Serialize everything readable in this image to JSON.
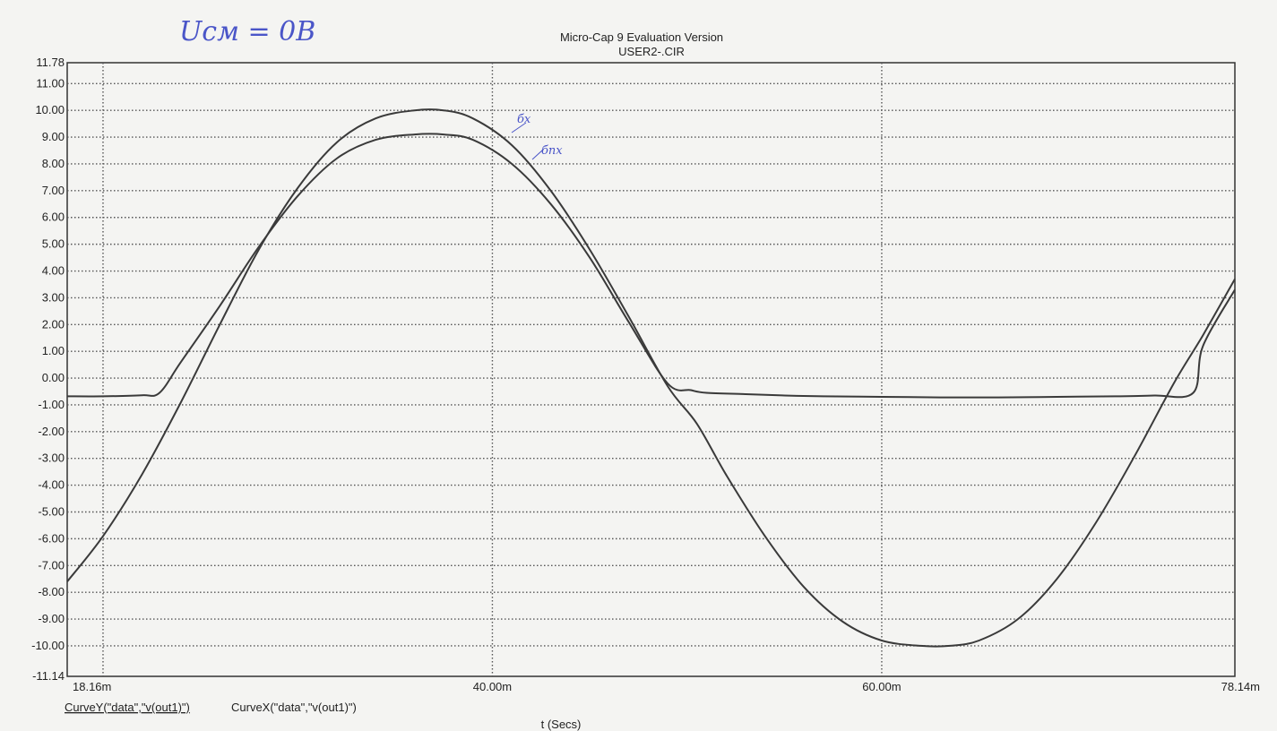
{
  "header": {
    "handwritten_note": "Uсм = 0В",
    "title": "Micro-Cap 9 Evaluation Version",
    "subtitle": "USER2-.CIR"
  },
  "footer": {
    "curve_y": "CurveY(\"data\",\"v(out1)\")",
    "curve_x": "CurveX(\"data\",\"v(out1)\")",
    "xlabel_handwritten": "t (Secs)"
  },
  "annotations": {
    "curve1": "бx",
    "curve2": "бпx"
  },
  "colors": {
    "curve": "#3a3a3a",
    "grid": "#555555",
    "ink": "#4a55c8",
    "background": "#f4f4f2"
  },
  "chart_data": {
    "type": "line",
    "title": "Micro-Cap 9 Evaluation Version",
    "subtitle": "USER2-.CIR",
    "xlabel": "t (Secs)",
    "ylabel": "",
    "xlim": [
      18.16,
      78.14
    ],
    "ylim": [
      -11.14,
      11.78
    ],
    "x_unit": "m",
    "x_ticks": [
      {
        "value": 18.16,
        "label": "18.16m"
      },
      {
        "value": 40.0,
        "label": "40.00m"
      },
      {
        "value": 60.0,
        "label": "60.00m"
      },
      {
        "value": 78.14,
        "label": "78.14m"
      }
    ],
    "x_grid": [
      20,
      40,
      60
    ],
    "y_ticks": [
      {
        "value": 11.78,
        "label": "11.78"
      },
      {
        "value": 11.0,
        "label": "11.00"
      },
      {
        "value": 10.0,
        "label": "10.00"
      },
      {
        "value": 9.0,
        "label": "9.00"
      },
      {
        "value": 8.0,
        "label": "8.00"
      },
      {
        "value": 7.0,
        "label": "7.00"
      },
      {
        "value": 6.0,
        "label": "6.00"
      },
      {
        "value": 5.0,
        "label": "5.00"
      },
      {
        "value": 4.0,
        "label": "4.00"
      },
      {
        "value": 3.0,
        "label": "3.00"
      },
      {
        "value": 2.0,
        "label": "2.00"
      },
      {
        "value": 1.0,
        "label": "1.00"
      },
      {
        "value": 0.0,
        "label": "0.00"
      },
      {
        "value": -1.0,
        "label": "-1.00"
      },
      {
        "value": -2.0,
        "label": "-2.00"
      },
      {
        "value": -3.0,
        "label": "-3.00"
      },
      {
        "value": -4.0,
        "label": "-4.00"
      },
      {
        "value": -5.0,
        "label": "-5.00"
      },
      {
        "value": -6.0,
        "label": "-6.00"
      },
      {
        "value": -7.0,
        "label": "-7.00"
      },
      {
        "value": -8.0,
        "label": "-8.00"
      },
      {
        "value": -9.0,
        "label": "-9.00"
      },
      {
        "value": -10.0,
        "label": "-10.00"
      },
      {
        "value": -11.14,
        "label": "-11.14"
      }
    ],
    "grid": true,
    "series": [
      {
        "x": [
          18.16,
          20,
          22,
          24,
          26,
          28,
          30,
          32,
          34,
          36,
          37.5,
          39,
          41,
          43,
          45,
          47,
          49,
          50.5,
          52,
          54,
          56,
          58,
          60,
          62,
          63.5,
          65,
          67,
          69,
          71,
          73,
          75,
          76.5,
          78.14
        ],
        "y": [
          -7.6,
          -5.9,
          -3.6,
          -0.9,
          2.0,
          4.8,
          7.1,
          8.8,
          9.7,
          10.0,
          10.0,
          9.7,
          8.7,
          7.0,
          4.8,
          2.3,
          -0.3,
          -1.7,
          -3.6,
          -5.9,
          -7.8,
          -9.1,
          -9.8,
          -10.0,
          -10.0,
          -9.8,
          -9.0,
          -7.5,
          -5.4,
          -2.9,
          -0.2,
          1.6,
          3.7
        ]
      },
      {
        "x": [
          18.16,
          20,
          22,
          22.9,
          24,
          26,
          28,
          30,
          32,
          34,
          36,
          37.5,
          39,
          41,
          43,
          45,
          47,
          49,
          50.2,
          51,
          53,
          55,
          57,
          60,
          63,
          66,
          69,
          72,
          74,
          76.0,
          76.5,
          78.14
        ],
        "y": [
          -0.68,
          -0.68,
          -0.64,
          -0.55,
          0.6,
          2.7,
          4.9,
          6.8,
          8.2,
          8.9,
          9.1,
          9.1,
          8.9,
          8.0,
          6.5,
          4.5,
          2.1,
          -0.2,
          -0.45,
          -0.55,
          -0.6,
          -0.65,
          -0.68,
          -0.7,
          -0.72,
          -0.72,
          -0.7,
          -0.68,
          -0.65,
          -0.55,
          1.2,
          3.3
        ]
      }
    ]
  }
}
